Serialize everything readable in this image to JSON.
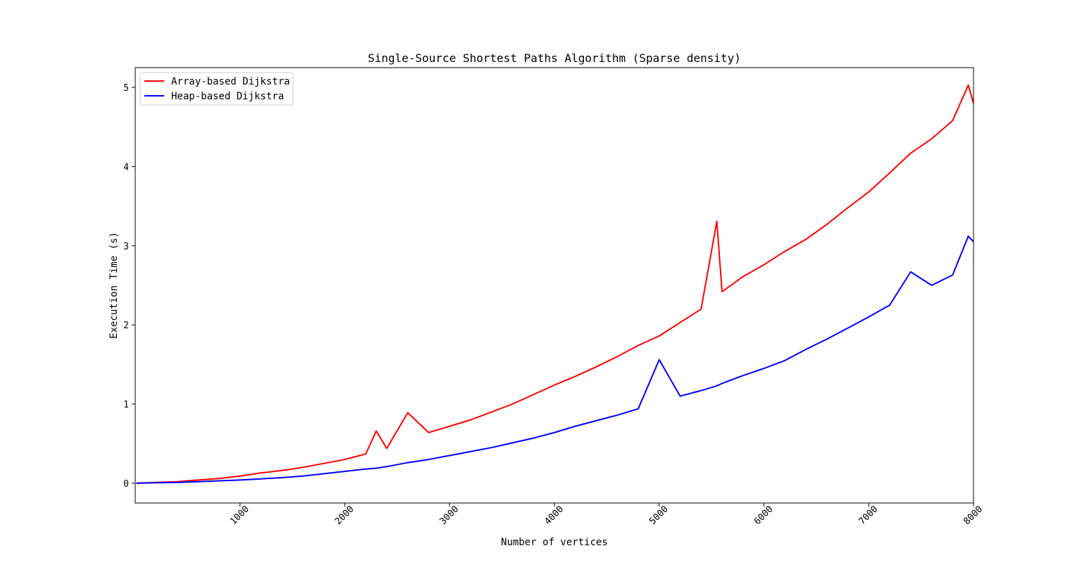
{
  "chart_data": {
    "type": "line",
    "title": "Single-Source Shortest Paths Algorithm (Sparse density)",
    "xlabel": "Number of vertices",
    "ylabel": "Execution Time (s)",
    "xlim": [
      0,
      8000
    ],
    "ylim": [
      -0.25,
      5.25
    ],
    "xticks": [
      1000,
      2000,
      3000,
      4000,
      5000,
      6000,
      7000,
      8000
    ],
    "xtick_labels": [
      "1000",
      "2000",
      "3000",
      "4000",
      "5000",
      "6000",
      "7000",
      "8000"
    ],
    "yticks": [
      0,
      1,
      2,
      3,
      4,
      5
    ],
    "ytick_labels": [
      "0",
      "1",
      "2",
      "3",
      "4",
      "5"
    ],
    "grid": false,
    "legend_position": "top-left",
    "x": [
      10,
      200,
      400,
      600,
      800,
      1000,
      1200,
      1400,
      1600,
      1800,
      2000,
      2200,
      2300,
      2400,
      2600,
      2800,
      3000,
      3200,
      3400,
      3600,
      3800,
      4000,
      4200,
      4400,
      4600,
      4800,
      5000,
      5200,
      5400,
      5550,
      5600,
      5800,
      6000,
      6200,
      6400,
      6600,
      6800,
      7000,
      7200,
      7400,
      7600,
      7800,
      7950,
      8000
    ],
    "series": [
      {
        "name": "Array-based Dijkstra",
        "color": "#ff0000",
        "values": [
          0.0,
          0.01,
          0.02,
          0.04,
          0.06,
          0.09,
          0.13,
          0.16,
          0.2,
          0.25,
          0.3,
          0.37,
          0.66,
          0.44,
          0.89,
          0.64,
          0.72,
          0.8,
          0.9,
          1.0,
          1.12,
          1.24,
          1.35,
          1.47,
          1.6,
          1.74,
          1.86,
          2.03,
          2.2,
          3.31,
          2.42,
          2.61,
          2.76,
          2.93,
          3.08,
          3.27,
          3.48,
          3.68,
          3.92,
          4.17,
          4.35,
          4.58,
          5.03,
          4.8
        ]
      },
      {
        "name": "Heap-based Dijkstra",
        "color": "#0000ff",
        "values": [
          0.0,
          0.005,
          0.01,
          0.02,
          0.03,
          0.04,
          0.055,
          0.07,
          0.09,
          0.12,
          0.15,
          0.18,
          0.19,
          0.21,
          0.26,
          0.3,
          0.35,
          0.4,
          0.45,
          0.51,
          0.57,
          0.64,
          0.72,
          0.79,
          0.86,
          0.94,
          1.56,
          1.1,
          1.17,
          1.23,
          1.26,
          1.36,
          1.45,
          1.55,
          1.69,
          1.82,
          1.96,
          2.1,
          2.25,
          2.67,
          2.5,
          2.63,
          3.12,
          3.05
        ]
      }
    ]
  }
}
